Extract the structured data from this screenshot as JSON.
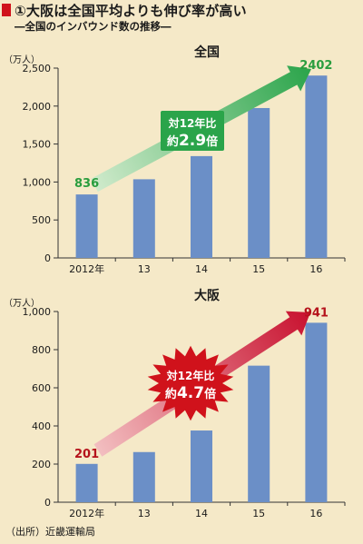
{
  "header": {
    "title": "①大阪は全国平均よりも伸び率が高い",
    "subtitle": "―全国のインバウンド数の推移―"
  },
  "source": "（出所）近畿運輸局",
  "colors": {
    "background": "#f5e9c8",
    "bar": "#6b8fc7",
    "title_mark": "#d0121b",
    "nat_arrow": "#2aa44a",
    "nat_label": "#2a9d3e",
    "osaka_arrow": "#c8102e",
    "osaka_label": "#b5121b"
  },
  "chart_data": [
    {
      "type": "bar",
      "title": "全国",
      "unit": "（万人）",
      "categories": [
        "2012年",
        "13",
        "14",
        "15",
        "16"
      ],
      "values": [
        836,
        1036,
        1341,
        1974,
        2402
      ],
      "ylim": [
        0,
        2500
      ],
      "yticks": [
        0,
        500,
        1000,
        1500,
        2000,
        2500
      ],
      "ytick_labels": [
        "0",
        "500",
        "1,000",
        "1,500",
        "2,000",
        "2,500"
      ],
      "data_labels": {
        "first": "836",
        "last": "2402"
      },
      "annotation": {
        "line1": "対12年比",
        "line2_prefix": "約",
        "multiplier": "2.9",
        "line2_suffix": "倍"
      }
    },
    {
      "type": "bar",
      "title": "大阪",
      "unit": "（万人）",
      "categories": [
        "2012年",
        "13",
        "14",
        "15",
        "16"
      ],
      "values": [
        201,
        263,
        376,
        716,
        941
      ],
      "ylim": [
        0,
        1000
      ],
      "yticks": [
        0,
        200,
        400,
        600,
        800,
        1000
      ],
      "ytick_labels": [
        "0",
        "200",
        "400",
        "600",
        "800",
        "1,000"
      ],
      "data_labels": {
        "first": "201",
        "last": "941"
      },
      "annotation": {
        "line1": "対12年比",
        "line2_prefix": "約",
        "multiplier": "4.7",
        "line2_suffix": "倍"
      }
    }
  ]
}
